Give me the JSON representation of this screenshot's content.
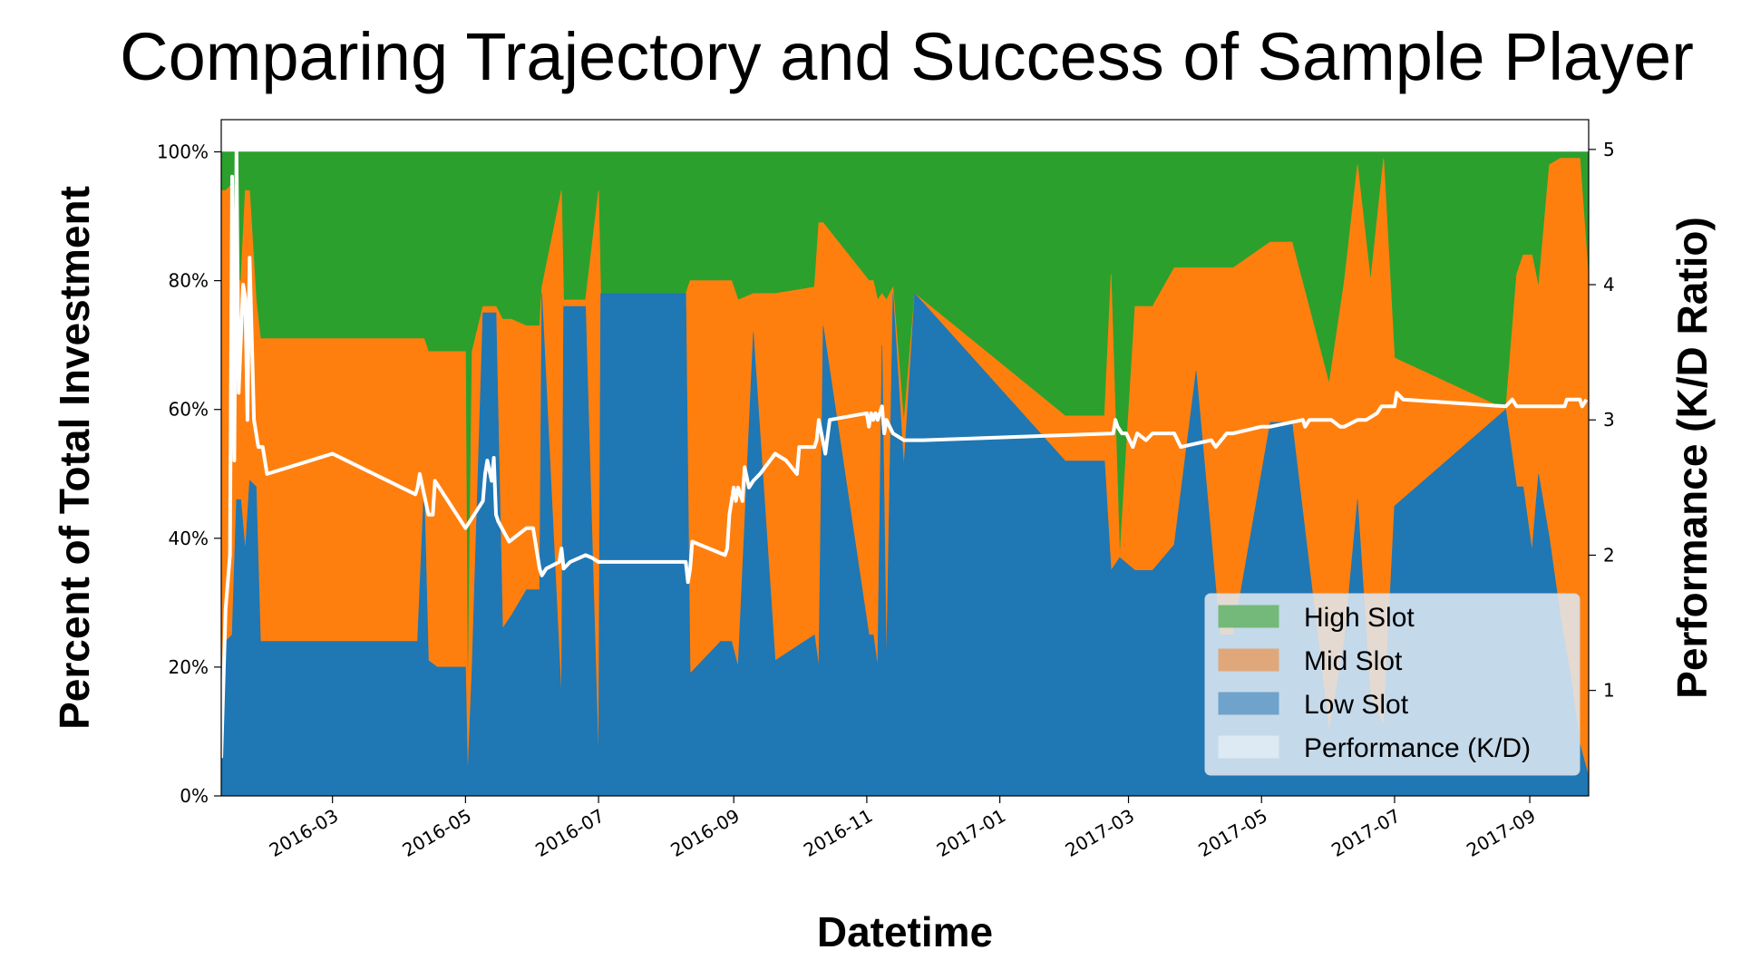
{
  "chart_data": {
    "type": "area",
    "title": "Comparing Trajectory and Success of Sample Player",
    "xlabel": "Datetime",
    "ylabel": "Percent of Total Investment",
    "y2label": "Performance (K/D Ratio)",
    "xlim": [
      "2016-01-10",
      "2017-09-28"
    ],
    "ylim": [
      0,
      1.05
    ],
    "y2lim": [
      0.22,
      5.22
    ],
    "x_ticks": [
      "2016-03",
      "2016-05",
      "2016-07",
      "2016-09",
      "2016-11",
      "2017-01",
      "2017-03",
      "2017-05",
      "2017-07",
      "2017-09"
    ],
    "y_ticks": [
      "0%",
      "20%",
      "40%",
      "60%",
      "80%",
      "100%"
    ],
    "y2_ticks": [
      "1",
      "2",
      "3",
      "4",
      "5"
    ],
    "legend_position": "lower-right",
    "colors": {
      "high": "#2ca02c",
      "mid": "#ff7f0e",
      "low": "#1f77b4",
      "performance": "#ffffff",
      "legend_high": "#74b97a",
      "legend_mid": "#e0a87a",
      "legend_low": "#6fa3cc",
      "legend_perf": "#dde9f3"
    },
    "legend": [
      "High Slot",
      "Mid Slot",
      "Low Slot",
      "Performance (K/D)"
    ],
    "series": [
      {
        "name": "Low Slot",
        "role": "low",
        "x": [
          "2016-01-10",
          "2016-01-12",
          "2016-01-15",
          "2016-01-17",
          "2016-01-19",
          "2016-01-21",
          "2016-01-23",
          "2016-01-26",
          "2016-01-28",
          "2016-02-01",
          "2016-04-09",
          "2016-04-12",
          "2016-04-14",
          "2016-04-18",
          "2016-05-01",
          "2016-05-02",
          "2016-05-04",
          "2016-05-09",
          "2016-05-15",
          "2016-05-18",
          "2016-05-22",
          "2016-05-29",
          "2016-06-04",
          "2016-06-05",
          "2016-06-14",
          "2016-06-15",
          "2016-06-20",
          "2016-06-25",
          "2016-07-01",
          "2016-07-02",
          "2016-07-07",
          "2016-08-10",
          "2016-08-12",
          "2016-08-26",
          "2016-08-31",
          "2016-09-03",
          "2016-09-10",
          "2016-09-20",
          "2016-10-08",
          "2016-10-10",
          "2016-10-12",
          "2016-11-02",
          "2016-11-04",
          "2016-11-06",
          "2016-11-08",
          "2016-11-10",
          "2016-11-13",
          "2016-11-18",
          "2016-11-23",
          "2017-01-31",
          "2017-02-18",
          "2017-02-21",
          "2017-02-25",
          "2017-03-04",
          "2017-03-12",
          "2017-03-22",
          "2017-04-01",
          "2017-04-12",
          "2017-04-18",
          "2017-05-05",
          "2017-05-15",
          "2017-06-01",
          "2017-06-08",
          "2017-06-14",
          "2017-06-20",
          "2017-06-26",
          "2017-07-01",
          "2017-08-21",
          "2017-08-26",
          "2017-08-29",
          "2017-09-02",
          "2017-09-05",
          "2017-09-10",
          "2017-09-15",
          "2017-09-20",
          "2017-09-24",
          "2017-09-28"
        ],
        "values": [
          0.05,
          0.24,
          0.25,
          0.46,
          0.46,
          0.38,
          0.49,
          0.48,
          0.24,
          0.24,
          0.24,
          0.48,
          0.21,
          0.2,
          0.2,
          0.03,
          0.2,
          0.75,
          0.75,
          0.26,
          0.28,
          0.32,
          0.32,
          0.78,
          0.15,
          0.76,
          0.76,
          0.76,
          0.05,
          0.78,
          0.78,
          0.78,
          0.19,
          0.24,
          0.24,
          0.2,
          0.72,
          0.21,
          0.25,
          0.2,
          0.73,
          0.25,
          0.25,
          0.2,
          0.7,
          0.2,
          0.78,
          0.51,
          0.78,
          0.52,
          0.52,
          0.35,
          0.37,
          0.35,
          0.35,
          0.39,
          0.66,
          0.25,
          0.25,
          0.58,
          0.58,
          0.1,
          0.24,
          0.46,
          0.15,
          0.11,
          0.45,
          0.6,
          0.48,
          0.48,
          0.38,
          0.5,
          0.4,
          0.28,
          0.18,
          0.08,
          0.03
        ]
      },
      {
        "name": "Mid Slot",
        "role": "mid",
        "x": [
          "2016-01-10",
          "2016-01-12",
          "2016-01-15",
          "2016-01-17",
          "2016-01-19",
          "2016-01-21",
          "2016-01-23",
          "2016-01-26",
          "2016-01-28",
          "2016-02-01",
          "2016-04-09",
          "2016-04-12",
          "2016-04-14",
          "2016-04-18",
          "2016-05-01",
          "2016-05-02",
          "2016-05-04",
          "2016-05-09",
          "2016-05-15",
          "2016-05-18",
          "2016-05-22",
          "2016-05-29",
          "2016-06-04",
          "2016-06-05",
          "2016-06-14",
          "2016-06-15",
          "2016-06-20",
          "2016-06-25",
          "2016-07-01",
          "2016-07-02",
          "2016-07-07",
          "2016-08-10",
          "2016-08-12",
          "2016-08-26",
          "2016-08-31",
          "2016-09-03",
          "2016-09-10",
          "2016-09-20",
          "2016-10-08",
          "2016-10-10",
          "2016-10-12",
          "2016-11-02",
          "2016-11-04",
          "2016-11-06",
          "2016-11-08",
          "2016-11-10",
          "2016-11-13",
          "2016-11-18",
          "2016-11-23",
          "2017-01-31",
          "2017-02-18",
          "2017-02-21",
          "2017-02-25",
          "2017-03-04",
          "2017-03-12",
          "2017-03-22",
          "2017-04-01",
          "2017-04-12",
          "2017-04-18",
          "2017-05-05",
          "2017-05-15",
          "2017-06-01",
          "2017-06-08",
          "2017-06-14",
          "2017-06-20",
          "2017-06-26",
          "2017-07-01",
          "2017-08-21",
          "2017-08-26",
          "2017-08-29",
          "2017-09-02",
          "2017-09-05",
          "2017-09-10",
          "2017-09-15",
          "2017-09-20",
          "2017-09-24",
          "2017-09-28"
        ],
        "values": [
          0.89,
          0.7,
          0.7,
          0.34,
          0.34,
          0.56,
          0.45,
          0.29,
          0.47,
          0.47,
          0.47,
          0.23,
          0.48,
          0.49,
          0.49,
          0.1,
          0.49,
          0.01,
          0.01,
          0.48,
          0.46,
          0.41,
          0.41,
          0.01,
          0.79,
          0.01,
          0.01,
          0.01,
          0.89,
          0.0,
          0.0,
          0.0,
          0.61,
          0.56,
          0.56,
          0.57,
          0.06,
          0.57,
          0.54,
          0.69,
          0.16,
          0.55,
          0.55,
          0.57,
          0.08,
          0.57,
          0.01,
          0.07,
          0.0,
          0.07,
          0.07,
          0.46,
          0.0,
          0.41,
          0.41,
          0.43,
          0.16,
          0.57,
          0.57,
          0.28,
          0.28,
          0.54,
          0.56,
          0.52,
          0.65,
          0.88,
          0.23,
          0.0,
          0.33,
          0.36,
          0.46,
          0.29,
          0.58,
          0.71,
          0.81,
          0.91,
          0.77
        ]
      },
      {
        "name": "High Slot",
        "role": "high",
        "x": [
          "2016-01-10",
          "2016-01-12",
          "2016-01-15",
          "2016-01-17",
          "2016-01-19",
          "2016-01-21",
          "2016-01-23",
          "2016-01-26",
          "2016-01-28",
          "2016-02-01",
          "2016-04-09",
          "2016-04-12",
          "2016-04-14",
          "2016-04-18",
          "2016-05-01",
          "2016-05-02",
          "2016-05-04",
          "2016-05-09",
          "2016-05-15",
          "2016-05-18",
          "2016-05-22",
          "2016-05-29",
          "2016-06-04",
          "2016-06-05",
          "2016-06-14",
          "2016-06-15",
          "2016-06-20",
          "2016-06-25",
          "2016-07-01",
          "2016-07-02",
          "2016-07-07",
          "2016-08-10",
          "2016-08-12",
          "2016-08-26",
          "2016-08-31",
          "2016-09-03",
          "2016-09-10",
          "2016-09-20",
          "2016-10-08",
          "2016-10-10",
          "2016-10-12",
          "2016-11-02",
          "2016-11-04",
          "2016-11-06",
          "2016-11-08",
          "2016-11-10",
          "2016-11-13",
          "2016-11-18",
          "2016-11-23",
          "2017-01-31",
          "2017-02-18",
          "2017-02-21",
          "2017-02-25",
          "2017-03-04",
          "2017-03-12",
          "2017-03-22",
          "2017-04-01",
          "2017-04-12",
          "2017-04-18",
          "2017-05-05",
          "2017-05-15",
          "2017-06-01",
          "2017-06-08",
          "2017-06-14",
          "2017-06-20",
          "2017-06-26",
          "2017-07-01",
          "2017-08-21",
          "2017-08-26",
          "2017-08-29",
          "2017-09-02",
          "2017-09-05",
          "2017-09-10",
          "2017-09-15",
          "2017-09-20",
          "2017-09-24",
          "2017-09-28"
        ],
        "values": [
          0.06,
          0.06,
          0.05,
          0.2,
          0.2,
          0.06,
          0.06,
          0.23,
          0.29,
          0.29,
          0.29,
          0.29,
          0.31,
          0.31,
          0.31,
          0.87,
          0.31,
          0.24,
          0.24,
          0.26,
          0.26,
          0.27,
          0.27,
          0.21,
          0.06,
          0.23,
          0.23,
          0.23,
          0.06,
          0.22,
          0.22,
          0.22,
          0.2,
          0.2,
          0.2,
          0.23,
          0.22,
          0.22,
          0.21,
          0.11,
          0.11,
          0.2,
          0.2,
          0.23,
          0.22,
          0.23,
          0.21,
          0.42,
          0.22,
          0.41,
          0.41,
          0.19,
          0.63,
          0.24,
          0.24,
          0.18,
          0.18,
          0.18,
          0.18,
          0.14,
          0.14,
          0.36,
          0.2,
          0.02,
          0.2,
          0.01,
          0.32,
          0.4,
          0.19,
          0.16,
          0.16,
          0.21,
          0.02,
          0.01,
          0.01,
          0.01,
          0.2
        ]
      },
      {
        "name": "Performance (K/D)",
        "role": "performance",
        "axis": "right",
        "x": [
          "2016-01-10",
          "2016-01-12",
          "2016-01-14",
          "2016-01-15",
          "2016-01-16",
          "2016-01-17",
          "2016-01-18",
          "2016-01-20",
          "2016-01-21",
          "2016-01-22",
          "2016-01-23",
          "2016-01-25",
          "2016-01-27",
          "2016-01-29",
          "2016-01-30",
          "2016-01-31",
          "2016-03-01",
          "2016-04-08",
          "2016-04-09",
          "2016-04-10",
          "2016-04-14",
          "2016-04-16",
          "2016-04-17",
          "2016-05-01",
          "2016-05-09",
          "2016-05-10",
          "2016-05-11",
          "2016-05-13",
          "2016-05-14",
          "2016-05-15",
          "2016-05-16",
          "2016-05-21",
          "2016-05-29",
          "2016-06-01",
          "2016-06-04",
          "2016-06-05",
          "2016-06-07",
          "2016-06-13",
          "2016-06-14",
          "2016-06-15",
          "2016-06-18",
          "2016-06-25",
          "2016-06-28",
          "2016-07-01",
          "2016-07-02",
          "2016-08-10",
          "2016-08-11",
          "2016-08-12",
          "2016-08-13",
          "2016-08-28",
          "2016-08-29",
          "2016-08-30",
          "2016-09-01",
          "2016-09-02",
          "2016-09-03",
          "2016-09-05",
          "2016-09-06",
          "2016-09-08",
          "2016-09-10",
          "2016-09-13",
          "2016-09-20",
          "2016-09-25",
          "2016-09-30",
          "2016-10-01",
          "2016-10-08",
          "2016-10-09",
          "2016-10-10",
          "2016-10-13",
          "2016-10-15",
          "2016-11-01",
          "2016-11-02",
          "2016-11-03",
          "2016-11-04",
          "2016-11-05",
          "2016-11-06",
          "2016-11-08",
          "2016-11-09",
          "2016-11-10",
          "2016-11-13",
          "2016-11-18",
          "2016-11-27",
          "2017-02-22",
          "2017-02-23",
          "2017-02-24",
          "2017-02-26",
          "2017-02-28",
          "2017-03-03",
          "2017-03-05",
          "2017-03-09",
          "2017-03-12",
          "2017-03-15",
          "2017-03-21",
          "2017-03-22",
          "2017-03-25",
          "2017-04-08",
          "2017-04-10",
          "2017-04-15",
          "2017-04-18",
          "2017-05-01",
          "2017-05-05",
          "2017-05-20",
          "2017-05-21",
          "2017-05-23",
          "2017-05-31",
          "2017-06-02",
          "2017-06-06",
          "2017-06-08",
          "2017-06-14",
          "2017-06-18",
          "2017-06-23",
          "2017-06-25",
          "2017-07-01",
          "2017-07-02",
          "2017-07-05",
          "2017-08-21",
          "2017-08-24",
          "2017-08-26",
          "2017-08-31",
          "2017-09-03",
          "2017-09-17",
          "2017-09-18",
          "2017-09-24",
          "2017-09-25",
          "2017-09-27"
        ],
        "values": [
          0.5,
          1.6,
          2.0,
          4.8,
          2.7,
          5.0,
          3.2,
          4.0,
          3.9,
          3.0,
          4.2,
          3.0,
          2.8,
          2.8,
          2.7,
          2.6,
          2.75,
          2.45,
          2.5,
          2.6,
          2.3,
          2.3,
          2.55,
          2.2,
          2.4,
          2.6,
          2.7,
          2.55,
          2.72,
          2.3,
          2.25,
          2.1,
          2.2,
          2.2,
          1.9,
          1.85,
          1.9,
          1.95,
          2.05,
          1.9,
          1.95,
          2.0,
          1.98,
          1.95,
          1.95,
          1.95,
          1.8,
          1.9,
          2.1,
          2.0,
          2.05,
          2.3,
          2.5,
          2.4,
          2.5,
          2.4,
          2.65,
          2.5,
          2.55,
          2.6,
          2.75,
          2.7,
          2.6,
          2.8,
          2.8,
          2.85,
          3.0,
          2.75,
          3.0,
          3.05,
          2.95,
          3.05,
          3.0,
          3.05,
          3.0,
          3.1,
          2.9,
          3.0,
          2.9,
          2.85,
          2.85,
          2.9,
          3.0,
          2.95,
          2.9,
          2.9,
          2.8,
          2.9,
          2.85,
          2.9,
          2.9,
          2.9,
          2.9,
          2.8,
          2.85,
          2.8,
          2.9,
          2.9,
          2.95,
          2.95,
          3.0,
          2.95,
          3.0,
          3.0,
          3.0,
          2.95,
          2.95,
          3.0,
          3.0,
          3.05,
          3.1,
          3.1,
          3.2,
          3.15,
          3.1,
          3.15,
          3.1,
          3.1,
          3.1,
          3.1,
          3.15,
          3.15,
          3.1,
          3.15
        ]
      }
    ]
  }
}
